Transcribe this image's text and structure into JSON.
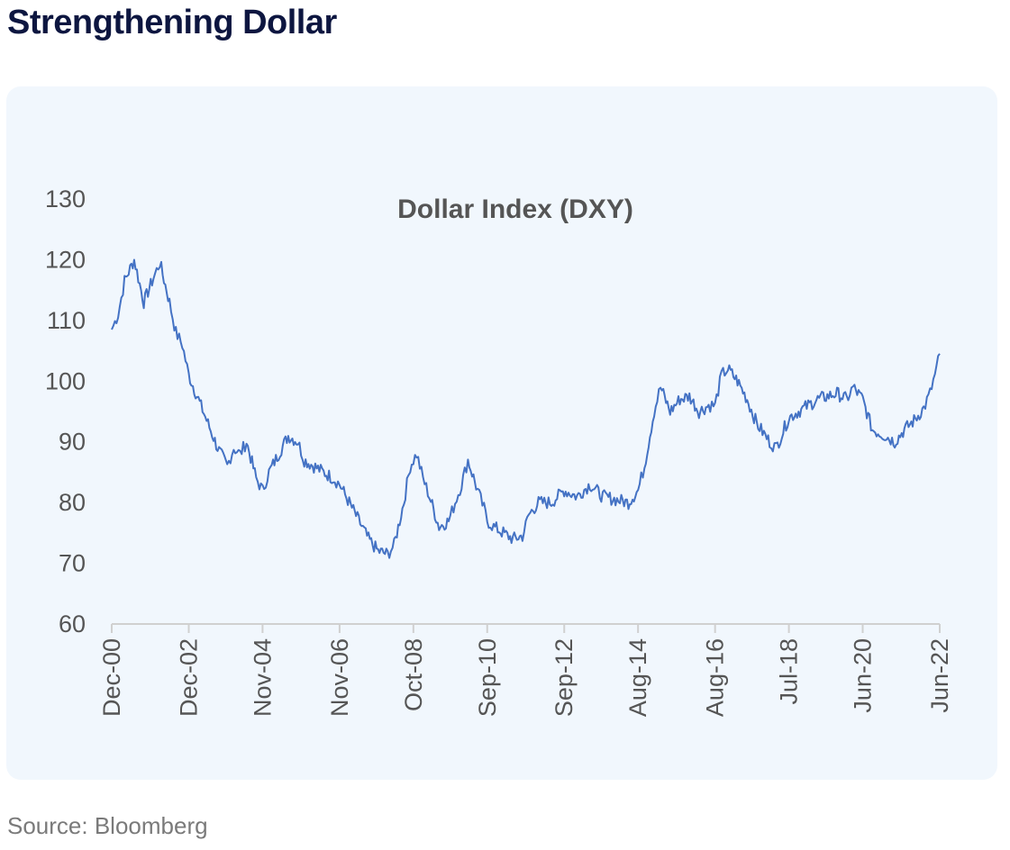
{
  "header": {
    "title": "Strengthening Dollar"
  },
  "footer": {
    "source": "Source: Bloomberg"
  },
  "chart_data": {
    "type": "line",
    "title": "Dollar Index (DXY)",
    "xlabel": "",
    "ylabel": "",
    "ylim": [
      60,
      130
    ],
    "yticks": [
      60,
      70,
      80,
      90,
      100,
      110,
      120,
      130
    ],
    "xticks": [
      "Dec-00",
      "Dec-02",
      "Nov-04",
      "Nov-06",
      "Oct-08",
      "Sep-10",
      "Sep-12",
      "Aug-14",
      "Aug-16",
      "Jul-18",
      "Jun-20",
      "Jun-22"
    ],
    "grid": false,
    "legend": "none",
    "colors": {
      "line": "#4472c4",
      "axis": "#d0d0d0"
    },
    "series": [
      {
        "x": [
          "Dec-00",
          "Feb-01",
          "Apr-01",
          "Jul-01",
          "Oct-01",
          "Jan-02",
          "Mar-02",
          "Jun-02",
          "Aug-02",
          "Oct-02",
          "Dec-02",
          "Mar-03",
          "Jun-03",
          "Sep-03",
          "Dec-03",
          "Feb-04",
          "Apr-04",
          "Jun-04",
          "Sep-04",
          "Nov-04",
          "Jan-05",
          "Apr-05",
          "Jul-05",
          "Oct-05",
          "Dec-05",
          "Mar-06",
          "Jun-06",
          "Sep-06",
          "Nov-06",
          "Feb-07",
          "May-07",
          "Aug-07",
          "Nov-07",
          "Feb-08",
          "Apr-08",
          "Jul-08",
          "Sep-08",
          "Nov-08",
          "Jan-09",
          "Mar-09",
          "Jun-09",
          "Sep-09",
          "Nov-09",
          "Jan-10",
          "Mar-10",
          "Jun-10",
          "Aug-10",
          "Sep-10",
          "Nov-10",
          "Feb-11",
          "May-11",
          "Aug-11",
          "Oct-11",
          "Jan-12",
          "May-12",
          "Sep-12",
          "Jan-13",
          "May-13",
          "Sep-13",
          "Jan-14",
          "May-14",
          "Aug-14",
          "Oct-14",
          "Jan-15",
          "Mar-15",
          "Jun-15",
          "Sep-15",
          "Dec-15",
          "Mar-16",
          "Jun-16",
          "Aug-16",
          "Oct-16",
          "Dec-16",
          "Mar-17",
          "Jun-17",
          "Sep-17",
          "Jan-18",
          "Mar-18",
          "Jul-18",
          "Oct-18",
          "Jan-19",
          "Apr-19",
          "Jul-19",
          "Oct-19",
          "Jan-20",
          "Mar-20",
          "Jun-20",
          "Sep-20",
          "Jan-21",
          "Apr-21",
          "Jul-21",
          "Oct-21",
          "Jan-22",
          "Mar-22",
          "May-22",
          "Jun-22"
        ],
        "values": [
          108.5,
          111,
          116.5,
          120,
          113,
          117,
          119.5,
          113,
          108,
          106,
          101,
          97,
          93,
          89,
          86,
          89,
          88,
          90,
          84,
          82,
          85,
          88,
          91,
          90,
          87,
          86,
          85,
          84,
          83,
          80,
          77,
          74,
          72,
          71.5,
          73,
          80,
          86,
          88,
          84,
          81,
          76,
          77,
          80,
          83,
          87,
          82,
          79,
          77,
          76,
          75,
          74,
          74.5,
          78,
          80,
          80,
          82,
          81,
          83,
          81,
          80.5,
          80,
          82,
          86,
          95,
          99,
          95,
          97,
          97.5,
          95,
          96,
          96,
          101,
          102,
          100,
          97,
          93,
          90,
          89,
          94,
          95,
          96,
          97,
          97.5,
          98,
          97,
          99,
          97,
          92,
          91,
          90,
          92,
          93.5,
          95.5,
          98,
          102,
          104.5
        ]
      }
    ]
  }
}
